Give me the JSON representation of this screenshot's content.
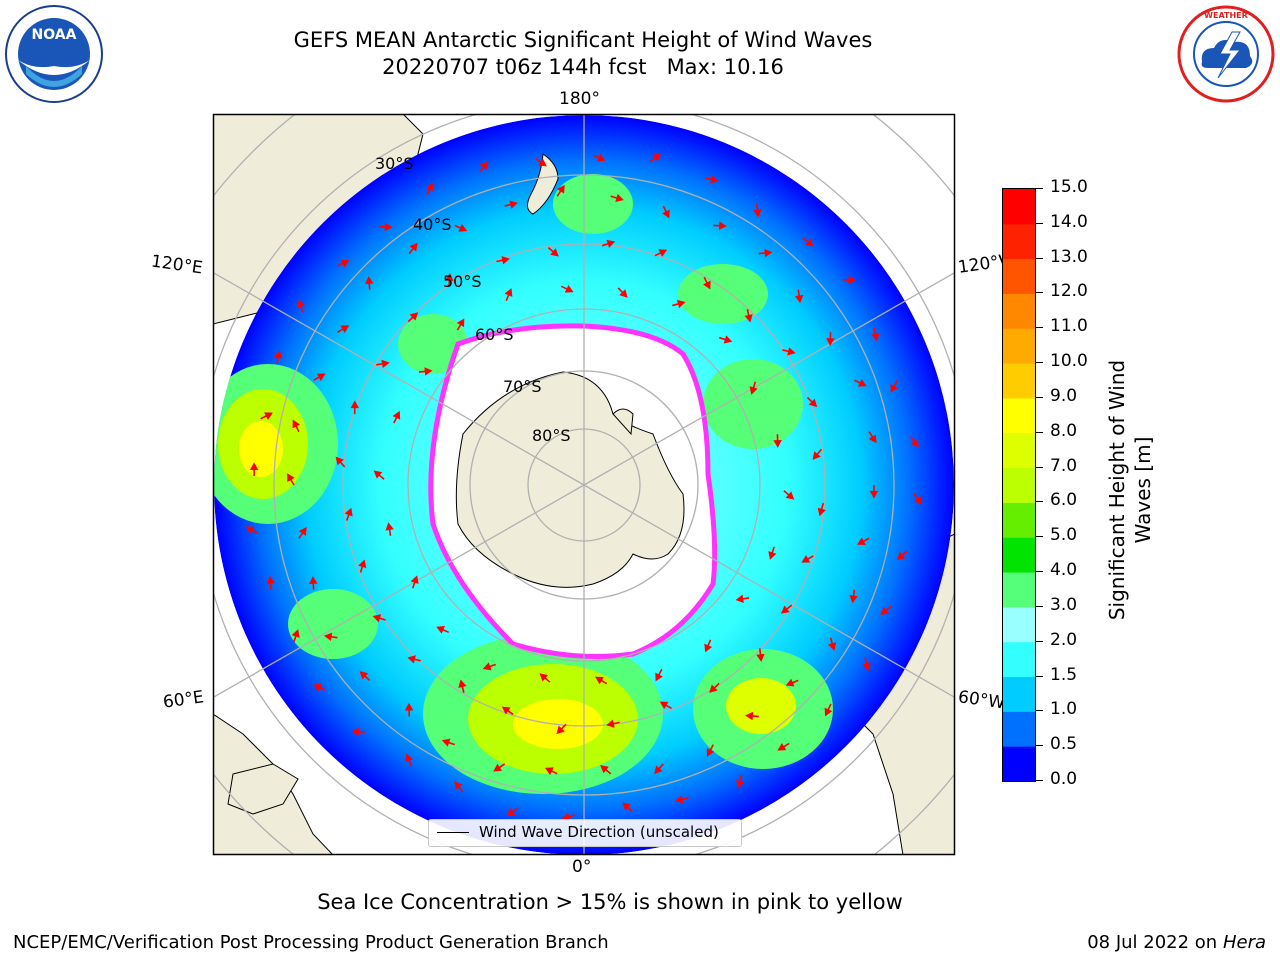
{
  "header": {
    "title_line1": "GEFS MEAN Antarctic Significant Height of Wind Waves",
    "title_line2": "20220707 t06z 144h fcst   Max: 10.16"
  },
  "logos": {
    "left": {
      "name": "noaa-logo",
      "text": "NOAA",
      "ring_text": "NATIONAL OCEANIC AND ATMOSPHERIC ADMINISTRATION · U.S. DEPARTMENT OF COMMERCE"
    },
    "right": {
      "name": "nws-logo",
      "ring_text": "NATIONAL WEATHER SERVICE"
    }
  },
  "map": {
    "projection": "south-polar-stereographic",
    "longitude_labels": {
      "top": "180°",
      "bottom": "0°",
      "left_upper": "120°E",
      "left_lower": "60°E",
      "right_upper": "120°W",
      "right_lower": "60°W"
    },
    "latitude_labels": [
      "30°S",
      "40°S",
      "50°S",
      "60°S",
      "70°S",
      "80°S"
    ],
    "colors": {
      "land": "#efedda",
      "ocean_nodata": "#ffffff",
      "arrow": "#ff0000",
      "grid": "#b0b0b0",
      "ice_edge": "#ff33ff",
      "ice_inner": "#ffcc33"
    }
  },
  "legend": {
    "label": "Wind Wave Direction (unscaled)"
  },
  "colorbar": {
    "label_line1": "Significant Height of Wind",
    "label_line2": "Waves [m]",
    "ticks": [
      "0.0",
      "0.5",
      "1.0",
      "1.5",
      "2.0",
      "3.0",
      "4.0",
      "5.0",
      "6.0",
      "7.0",
      "8.0",
      "9.0",
      "10.0",
      "11.0",
      "12.0",
      "13.0",
      "14.0",
      "15.0"
    ],
    "colors": [
      "#0000ff",
      "#0070ff",
      "#00ccff",
      "#33ffff",
      "#99ffff",
      "#55ff77",
      "#00e400",
      "#66ee00",
      "#bbff00",
      "#ddff00",
      "#ffff00",
      "#ffcc00",
      "#ffaa00",
      "#ff8800",
      "#ff5500",
      "#ff2200",
      "#ff0000"
    ]
  },
  "notes": {
    "sea_ice": "Sea Ice Concentration > 15% is shown in pink to yellow"
  },
  "footer": {
    "left": "NCEP/EMC/Verification Post Processing Product Generation Branch",
    "right_date": "08 Jul 2022 on",
    "right_machine": "Hera"
  }
}
